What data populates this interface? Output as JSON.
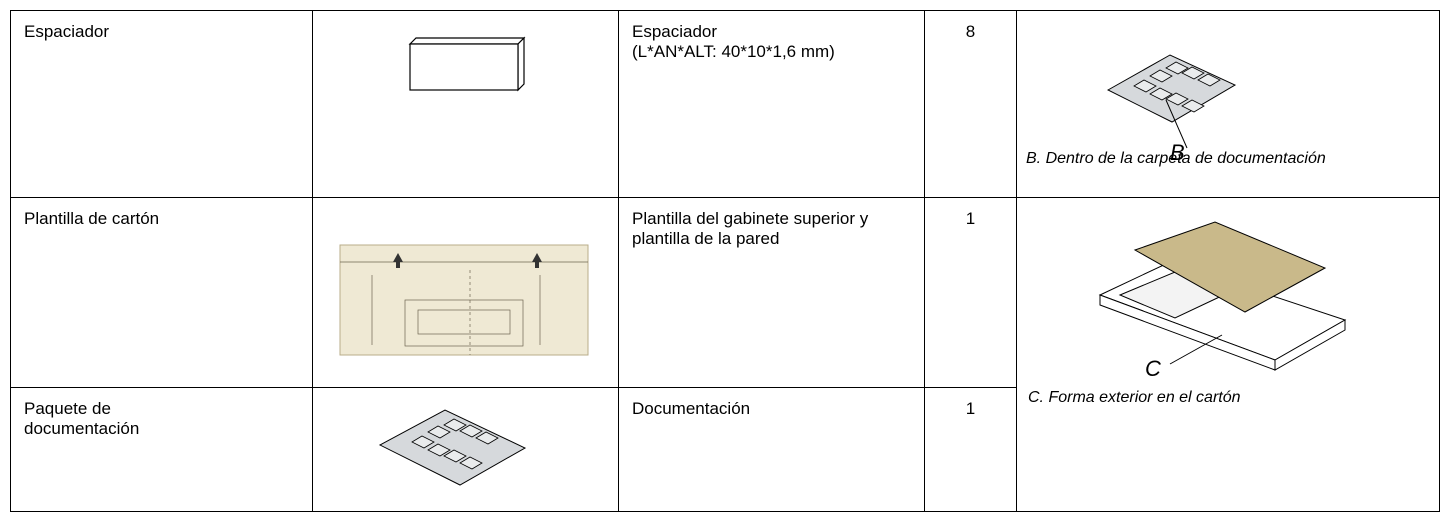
{
  "table": {
    "rows": [
      {
        "name": "Espaciador",
        "description": [
          "Espaciador",
          "(L*AN*ALT: 40*10*1,6 mm)"
        ],
        "quantity": "8",
        "location_letter": "B",
        "location": "B. Dentro de la carpeta de documentación"
      },
      {
        "name": "Plantilla de cartón",
        "description": [
          "Plantilla del gabinete superior y plantilla de la pared"
        ],
        "quantity": "1",
        "location_letter": "C",
        "location": "C. Forma exterior en el cartón"
      },
      {
        "name": "Paquete de documentación",
        "description": [
          "Documentación"
        ],
        "quantity": "1"
      }
    ]
  }
}
